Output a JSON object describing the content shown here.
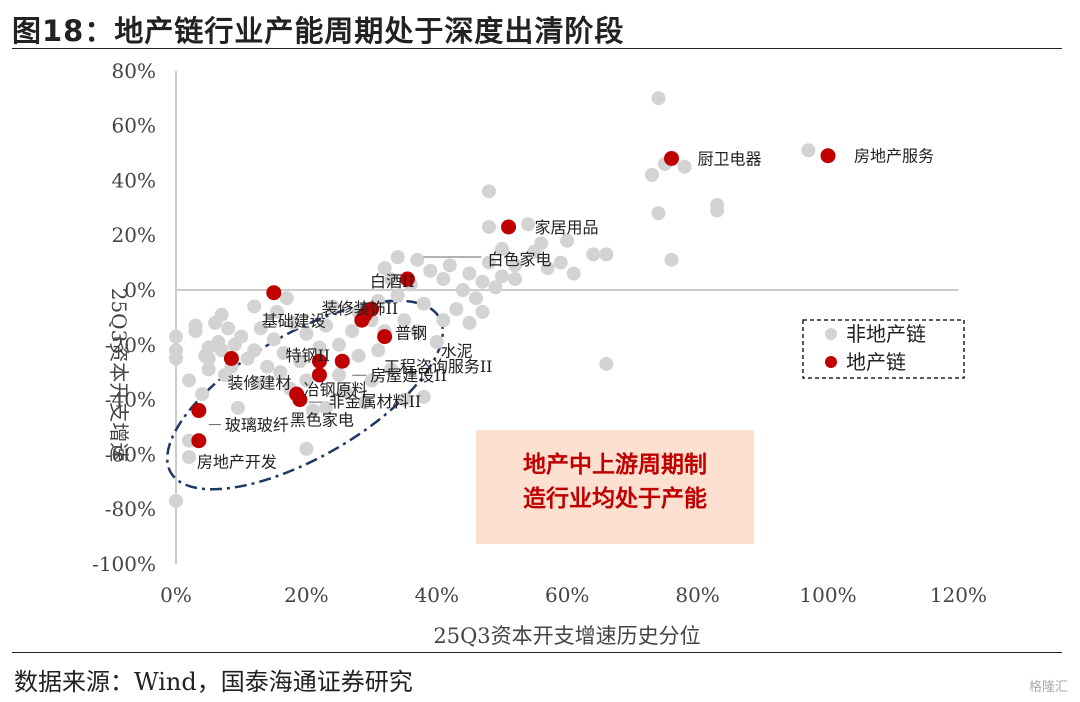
{
  "header": {
    "title": "图18：地产链行业产能周期处于深度出清阶段"
  },
  "footer": {
    "source": "数据来源：Wind，国泰海通证券研究",
    "watermark": "格隆汇"
  },
  "callout": {
    "line1": "地产中上游周期制",
    "line2": "造行业均处于产能"
  },
  "colors": {
    "non_property": "#d3d3d3",
    "property": "#c00000",
    "callout_bg": "#fde0d0",
    "callout_text": "#c00000",
    "ellipse": "#1f3864"
  },
  "chart_data": {
    "type": "scatter",
    "xlabel": "25Q3资本开支增速历史分位",
    "ylabel": "25Q3资本开支增速",
    "xlim": [
      0,
      1.2
    ],
    "ylim": [
      -1.0,
      0.8
    ],
    "x_ticks": [
      "0%",
      "20%",
      "40%",
      "60%",
      "80%",
      "100%",
      "120%"
    ],
    "y_ticks": [
      "80%",
      "60%",
      "40%",
      "20%",
      "0%",
      "-20%",
      "-40%",
      "-60%",
      "-80%",
      "-100%"
    ],
    "legend": {
      "position": "right",
      "items": [
        "非地产链",
        "地产链"
      ]
    },
    "series": [
      {
        "name": "非地产链",
        "color": "#d3d3d3",
        "points": [
          [
            0.0,
            -0.17
          ],
          [
            0.0,
            -0.22
          ],
          [
            0.0,
            -0.25
          ],
          [
            0.0,
            -0.77
          ],
          [
            0.02,
            -0.33
          ],
          [
            0.02,
            -0.55
          ],
          [
            0.02,
            -0.61
          ],
          [
            0.03,
            -0.13
          ],
          [
            0.03,
            -0.15
          ],
          [
            0.04,
            -0.38
          ],
          [
            0.045,
            -0.24
          ],
          [
            0.05,
            -0.21
          ],
          [
            0.05,
            -0.25
          ],
          [
            0.05,
            -0.29
          ],
          [
            0.06,
            -0.12
          ],
          [
            0.065,
            -0.19
          ],
          [
            0.07,
            -0.09
          ],
          [
            0.07,
            -0.22
          ],
          [
            0.075,
            -0.31
          ],
          [
            0.08,
            -0.14
          ],
          [
            0.085,
            -0.28
          ],
          [
            0.09,
            -0.2
          ],
          [
            0.095,
            -0.43
          ],
          [
            0.1,
            -0.17
          ],
          [
            0.11,
            -0.25
          ],
          [
            0.12,
            -0.06
          ],
          [
            0.12,
            -0.22
          ],
          [
            0.125,
            -0.34
          ],
          [
            0.13,
            -0.14
          ],
          [
            0.14,
            -0.28
          ],
          [
            0.15,
            -0.18
          ],
          [
            0.155,
            -0.08
          ],
          [
            0.16,
            -0.3
          ],
          [
            0.165,
            -0.23
          ],
          [
            0.17,
            -0.03
          ],
          [
            0.175,
            -0.36
          ],
          [
            0.18,
            -0.12
          ],
          [
            0.19,
            -0.26
          ],
          [
            0.2,
            -0.16
          ],
          [
            0.2,
            -0.33
          ],
          [
            0.21,
            -0.44
          ],
          [
            0.2,
            -0.58
          ],
          [
            0.22,
            -0.21
          ],
          [
            0.23,
            -0.13
          ],
          [
            0.23,
            -0.43
          ],
          [
            0.24,
            -0.06
          ],
          [
            0.25,
            -0.31
          ],
          [
            0.25,
            -0.2
          ],
          [
            0.26,
            -0.37
          ],
          [
            0.27,
            -0.15
          ],
          [
            0.28,
            -0.08
          ],
          [
            0.28,
            -0.24
          ],
          [
            0.29,
            -0.41
          ],
          [
            0.3,
            -0.11
          ],
          [
            0.3,
            -0.33
          ],
          [
            0.31,
            -0.04
          ],
          [
            0.31,
            -0.22
          ],
          [
            0.32,
            -0.15
          ],
          [
            0.32,
            0.08
          ],
          [
            0.33,
            0.04
          ],
          [
            0.33,
            -0.29
          ],
          [
            0.34,
            -0.02
          ],
          [
            0.34,
            0.12
          ],
          [
            0.35,
            -0.11
          ],
          [
            0.35,
            -0.4
          ],
          [
            0.36,
            0.02
          ],
          [
            0.37,
            -0.15
          ],
          [
            0.37,
            0.11
          ],
          [
            0.38,
            -0.05
          ],
          [
            0.38,
            -0.39
          ],
          [
            0.39,
            0.07
          ],
          [
            0.4,
            -0.19
          ],
          [
            0.41,
            0.04
          ],
          [
            0.41,
            -0.11
          ],
          [
            0.42,
            0.09
          ],
          [
            0.43,
            -0.07
          ],
          [
            0.44,
            0.0
          ],
          [
            0.45,
            -0.12
          ],
          [
            0.45,
            0.06
          ],
          [
            0.46,
            -0.03
          ],
          [
            0.47,
            0.03
          ],
          [
            0.47,
            -0.08
          ],
          [
            0.48,
            0.1
          ],
          [
            0.49,
            0.01
          ],
          [
            0.48,
            0.36
          ],
          [
            0.48,
            0.23
          ],
          [
            0.5,
            0.15
          ],
          [
            0.5,
            0.05
          ],
          [
            0.52,
            0.09
          ],
          [
            0.52,
            0.04
          ],
          [
            0.54,
            0.24
          ],
          [
            0.55,
            0.14
          ],
          [
            0.56,
            0.17
          ],
          [
            0.57,
            0.08
          ],
          [
            0.59,
            0.1
          ],
          [
            0.6,
            0.18
          ],
          [
            0.61,
            0.06
          ],
          [
            0.64,
            0.13
          ],
          [
            0.66,
            0.13
          ],
          [
            0.66,
            -0.27
          ],
          [
            0.73,
            0.42
          ],
          [
            0.74,
            0.7
          ],
          [
            0.74,
            0.28
          ],
          [
            0.75,
            0.46
          ],
          [
            0.76,
            0.11
          ],
          [
            0.78,
            0.45
          ],
          [
            0.83,
            0.29
          ],
          [
            0.83,
            0.31
          ],
          [
            0.97,
            0.51
          ]
        ]
      },
      {
        "name": "地产链",
        "color": "#c00000",
        "points": [
          {
            "x": 0.76,
            "y": 0.48,
            "label": "厨卫电器"
          },
          {
            "x": 1.0,
            "y": 0.49,
            "label": "房地产服务"
          },
          {
            "x": 0.51,
            "y": 0.23,
            "label": "家居用品"
          },
          {
            "x": 0.355,
            "y": 0.04,
            "label": "白色家电"
          },
          {
            "x": 0.15,
            "y": -0.01,
            "label": "基础建设"
          },
          {
            "x": 0.3,
            "y": -0.07,
            "label": "装修装饰II"
          },
          {
            "x": 0.29,
            "y": -0.09,
            "label": "普钢"
          },
          {
            "x": 0.285,
            "y": -0.11,
            "label": "工程咨询服务II"
          },
          {
            "x": 0.32,
            "y": -0.17,
            "label": "水泥"
          },
          {
            "x": 0.22,
            "y": -0.26,
            "label": "特钢II"
          },
          {
            "x": 0.255,
            "y": -0.26,
            "label": "房屋建设II"
          },
          {
            "x": 0.085,
            "y": -0.25,
            "label": "装修建材"
          },
          {
            "x": 0.22,
            "y": -0.31,
            "label": "冶钢原料"
          },
          {
            "x": 0.185,
            "y": -0.38,
            "label": "非金属材料II"
          },
          {
            "x": 0.19,
            "y": -0.4,
            "label": "黑色家电"
          },
          {
            "x": 0.035,
            "y": -0.44,
            "label": "玻璃玻纤"
          },
          {
            "x": 0.035,
            "y": -0.55,
            "label": "房地产开发"
          }
        ]
      }
    ],
    "annotations": [
      "白酒II"
    ]
  }
}
